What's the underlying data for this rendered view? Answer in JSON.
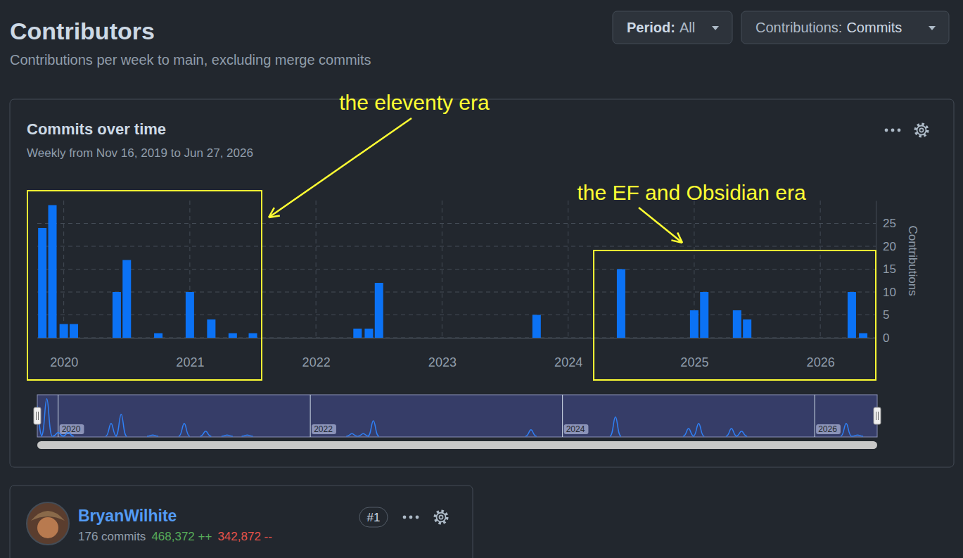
{
  "chart_data": {
    "type": "bar",
    "title": "Commits over time",
    "subtitle": "Weekly from Nov 16, 2019 to Jun 27, 2026",
    "y_label": "Contributions",
    "x": [
      2019.83,
      2019.91,
      2020.0,
      2020.08,
      2020.42,
      2020.5,
      2020.75,
      2021.0,
      2021.17,
      2021.34,
      2021.5,
      2022.33,
      2022.42,
      2022.5,
      2023.75,
      2024.42,
      2025.0,
      2025.08,
      2025.34,
      2025.42,
      2026.25,
      2026.34
    ],
    "values": [
      24,
      29,
      3,
      3,
      10,
      17,
      1,
      10,
      4,
      1,
      1,
      2,
      2,
      12,
      5,
      15,
      6,
      10,
      6,
      4,
      10,
      1
    ],
    "color": "#0b72f5",
    "xlim": [
      2019.79,
      2026.44
    ],
    "xticks": [
      2020,
      2021,
      2022,
      2023,
      2024,
      2025,
      2026
    ],
    "ylim": [
      0,
      30
    ],
    "yticks": [
      0,
      5,
      10,
      15,
      20,
      25
    ],
    "grid": true,
    "annotations": [
      "the eleventy era",
      "the EF and Obsidian era"
    ]
  },
  "page": {
    "title": "Contributors",
    "subtitle": "Contributions per week to main, excluding merge commits",
    "filters": [
      {
        "label": "Period:",
        "value": "All"
      },
      {
        "label": "Contributions:",
        "value": "Commits"
      }
    ],
    "navigator": {
      "xticks": [
        2020,
        2022,
        2024,
        2026
      ]
    },
    "contributor": {
      "name": "BryanWilhite",
      "rank": "#1",
      "commits": "176 commits",
      "additions": "468,372 ++",
      "deletions": "342,872 --"
    }
  }
}
